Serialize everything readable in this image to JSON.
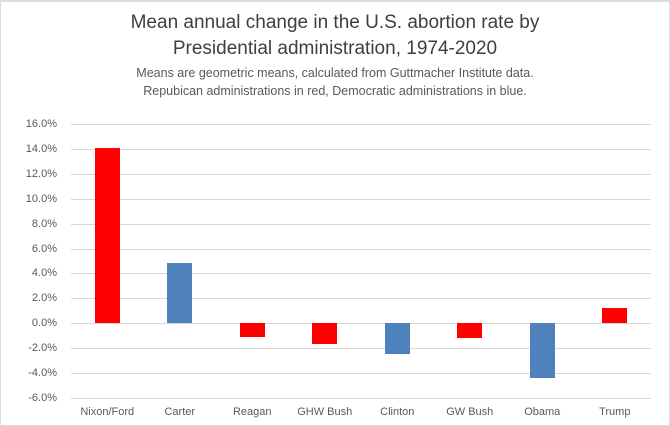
{
  "chart_data": {
    "type": "bar",
    "title": "Mean annual change in the U.S. abortion rate by Presidential administration, 1974-2020",
    "title_lines": [
      "Mean annual change in the U.S. abortion rate by",
      "Presidential administration, 1974-2020"
    ],
    "subtitle_lines": [
      "Means are geometric means, calculated from Guttmacher Institute data.",
      "Repubican administrations in red, Democratic administrations in blue."
    ],
    "categories": [
      "Nixon/Ford",
      "Carter",
      "Reagan",
      "GHW Bush",
      "Clinton",
      "GW Bush",
      "Obama",
      "Trump"
    ],
    "values": [
      14.1,
      4.8,
      -1.1,
      -1.7,
      -2.5,
      -1.2,
      -4.4,
      1.2
    ],
    "values_unit": "percent",
    "parties": [
      "Republican",
      "Democratic",
      "Republican",
      "Republican",
      "Democratic",
      "Republican",
      "Democratic",
      "Republican"
    ],
    "party_colors": {
      "Republican": "#ff0000",
      "Democratic": "#4f81bd"
    },
    "xlabel": "",
    "ylabel": "",
    "ylim": [
      -6,
      16
    ],
    "grid": true,
    "gridline_color": "#d9d9d9",
    "legend": "none",
    "yticks": [
      {
        "label": "16.0%",
        "value": 16
      },
      {
        "label": "14.0%",
        "value": 14
      },
      {
        "label": "12.0%",
        "value": 12
      },
      {
        "label": "10.0%",
        "value": 10
      },
      {
        "label": "8.0%",
        "value": 8
      },
      {
        "label": "6.0%",
        "value": 6
      },
      {
        "label": "4.0%",
        "value": 4
      },
      {
        "label": "2.0%",
        "value": 2
      },
      {
        "label": "0.0%",
        "value": 0
      },
      {
        "label": "-2.0%",
        "value": -2
      },
      {
        "label": "-4.0%",
        "value": -4
      },
      {
        "label": "-6.0%",
        "value": -6
      }
    ]
  },
  "text_colors": {
    "title": "#3f3f3f",
    "subtitle": "#595959",
    "axis": "#595959"
  }
}
